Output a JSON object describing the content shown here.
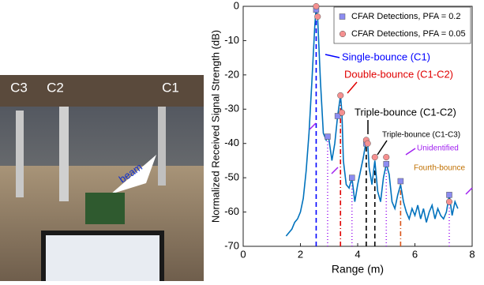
{
  "photo": {
    "labels": [
      "C3",
      "C2",
      "C1"
    ],
    "beam": "beam"
  },
  "chart_data": {
    "type": "line",
    "xlabel": "Range (m)",
    "ylabel": "Normalized Received Signal Strength (dB)",
    "xlim": [
      0,
      8
    ],
    "xticks": [
      0,
      2,
      4,
      6,
      8
    ],
    "ylim": [
      -70,
      0
    ],
    "yticks": [
      0,
      -10,
      -20,
      -30,
      -40,
      -50,
      -60,
      -70
    ],
    "legend": "upper right",
    "series": [
      {
        "type": "line",
        "color": "#0072bd",
        "x": [
          1.5,
          1.6,
          1.7,
          1.8,
          1.9,
          2.0,
          2.1,
          2.2,
          2.3,
          2.4,
          2.5,
          2.55,
          2.6,
          2.7,
          2.8,
          2.9,
          2.95,
          3.0,
          3.1,
          3.2,
          3.3,
          3.4,
          3.45,
          3.5,
          3.6,
          3.7,
          3.8,
          3.9,
          4.0,
          4.1,
          4.2,
          4.3,
          4.35,
          4.4,
          4.5,
          4.6,
          4.7,
          4.8,
          4.9,
          5.0,
          5.1,
          5.2,
          5.3,
          5.4,
          5.5,
          5.6,
          5.7,
          5.8,
          5.9,
          6.0,
          6.1,
          6.2,
          6.3,
          6.4,
          6.5,
          6.6,
          6.7,
          6.8,
          6.9,
          7.0,
          7.1,
          7.2,
          7.3,
          7.4,
          7.5
        ],
        "values": [
          -67,
          -66,
          -65,
          -63,
          -62,
          -60,
          -56,
          -48,
          -37,
          -22,
          -6,
          0,
          -3,
          -22,
          -37,
          -39,
          -38,
          -39,
          -45,
          -40,
          -32,
          -26,
          -31,
          -45,
          -52,
          -53,
          -50,
          -57,
          -52,
          -48,
          -44,
          -39,
          -40,
          -47,
          -52,
          -45,
          -54,
          -57,
          -50,
          -46,
          -49,
          -57,
          -59,
          -55,
          -52,
          -57,
          -60,
          -62,
          -59,
          -61,
          -58,
          -62,
          -59,
          -63,
          -60,
          -58,
          -62,
          -59,
          -61,
          -62,
          -60,
          -55,
          -61,
          -57,
          -59
        ]
      },
      {
        "type": "scatter",
        "name": "CFAR Detections, PFA = 0.2",
        "marker": "square",
        "color": "#8c8cf0",
        "x": [
          2.55,
          2.95,
          3.3,
          3.8,
          4.3,
          5.0,
          5.5,
          7.2
        ],
        "values": [
          -1,
          -38,
          -32,
          -50,
          -40,
          -46,
          -51,
          -55
        ]
      },
      {
        "type": "scatter",
        "name": "CFAR Detections, PFA = 0.05",
        "marker": "circle",
        "color": "#f59090",
        "x": [
          2.55,
          2.6,
          3.4,
          3.45,
          4.3,
          4.35,
          4.6,
          5.0,
          7.2
        ],
        "values": [
          0,
          -3,
          -26,
          -31,
          -39,
          -40,
          -44,
          -44,
          -57
        ]
      }
    ],
    "vlines": [
      {
        "x": 2.55,
        "top": 0,
        "color": "#0000ff",
        "dash": "6,4"
      },
      {
        "x": 3.4,
        "top": -26,
        "color": "#e00000",
        "dash": "6,3,1,3"
      },
      {
        "x": 4.3,
        "top": -39,
        "color": "#000000",
        "dash": "6,4"
      },
      {
        "x": 4.6,
        "top": -44,
        "color": "#000000",
        "dash": "6,4"
      },
      {
        "x": 2.95,
        "top": -38,
        "color": "#a020f0",
        "dash": "1,3"
      },
      {
        "x": 3.8,
        "top": -50,
        "color": "#a020f0",
        "dash": "1,3"
      },
      {
        "x": 5.0,
        "top": -46,
        "color": "#a020f0",
        "dash": "1,3"
      },
      {
        "x": 7.2,
        "top": -55,
        "color": "#a020f0",
        "dash": "1,3"
      },
      {
        "x": 5.5,
        "top": -51,
        "color": "#d95319",
        "dash": "6,3,1,3"
      }
    ],
    "annotations": [
      {
        "text": "Single-bounce (C1)",
        "color": "#0000ff"
      },
      {
        "text": "Double-bounce (C1-C2)",
        "color": "#e00000"
      },
      {
        "text": "Triple-bounce (C1-C2)",
        "color": "#000000"
      },
      {
        "text": "Triple-bounce (C1-C3)",
        "color": "#000000"
      },
      {
        "text": "Unidentified",
        "color": "#a020f0"
      },
      {
        "text": "Fourth-bounce",
        "color": "#c07000"
      }
    ]
  }
}
